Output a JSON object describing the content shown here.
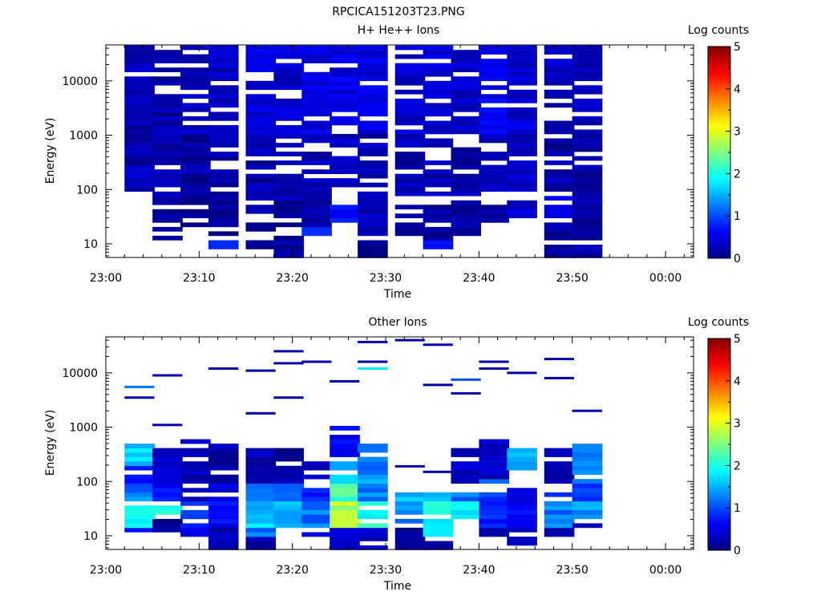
{
  "figure_title": "RPCICA151203T23.PNG",
  "chart_data": [
    {
      "type": "heatmap",
      "title": "H+ He++ Ions",
      "xlabel": "Time",
      "ylabel": "Energy (eV)",
      "xlim": [
        "23:00",
        "00:03"
      ],
      "ylim": [
        5.6,
        46000
      ],
      "yscale": "log",
      "x_tick_labels": [
        "23:00",
        "23:10",
        "23:20",
        "23:30",
        "23:40",
        "23:50",
        "00:00"
      ],
      "y_tick_labels": [
        "10",
        "100",
        "1000",
        "10000"
      ],
      "colorbar": {
        "label": "Log counts",
        "range": [
          0,
          5
        ],
        "tick_labels": [
          "0",
          "1",
          "2",
          "3",
          "4",
          "5"
        ]
      },
      "time_bins_start": [
        "23:02",
        "23:05",
        "23:08",
        "23:11",
        "23:15",
        "23:18",
        "23:21",
        "23:24",
        "23:27",
        "23:31",
        "23:34",
        "23:37",
        "23:40",
        "23:43",
        "23:47",
        "23:50"
      ],
      "bin_minutes": 3.2,
      "columns": [
        {
          "emin": 100,
          "emax": 45000,
          "bands": [
            [
              100,
              300,
              0.3
            ],
            [
              300,
              1500,
              0.2
            ],
            [
              1500,
              45000,
              0.3
            ]
          ]
        },
        {
          "emin": 12,
          "emax": 45000,
          "bands": [
            [
              12,
              60,
              0.1
            ],
            [
              60,
              1000,
              0.2
            ],
            [
              1000,
              45000,
              0.2
            ]
          ]
        },
        {
          "emin": 15,
          "emax": 45000,
          "bands": [
            [
              15,
              60,
              0.1
            ],
            [
              60,
              1000,
              0.15
            ],
            [
              1000,
              45000,
              0.3
            ]
          ]
        },
        {
          "emin": 8,
          "emax": 45000,
          "bands": [
            [
              8,
              12,
              0.7
            ],
            [
              12,
              100,
              0.1
            ],
            [
              100,
              1000,
              0.2
            ],
            [
              1000,
              45000,
              0.35
            ]
          ]
        },
        {
          "emin": 8,
          "emax": 45000,
          "bands": [
            [
              8,
              40,
              0.1
            ],
            [
              40,
              1000,
              0.2
            ],
            [
              1000,
              45000,
              0.45
            ]
          ]
        },
        {
          "emin": 6,
          "emax": 45000,
          "bands": [
            [
              6,
              60,
              0.15
            ],
            [
              60,
              1000,
              0.25
            ],
            [
              1000,
              45000,
              0.4
            ]
          ]
        },
        {
          "emin": 15,
          "emax": 45000,
          "bands": [
            [
              15,
              20,
              0.7
            ],
            [
              20,
              100,
              0.2
            ],
            [
              100,
              1000,
              0.25
            ],
            [
              1000,
              45000,
              0.5
            ]
          ]
        },
        {
          "emin": 20,
          "emax": 45000,
          "bands": [
            [
              20,
              60,
              0.7
            ],
            [
              60,
              1000,
              0.3
            ],
            [
              1000,
              45000,
              0.5
            ]
          ]
        },
        {
          "emin": 6,
          "emax": 45000,
          "bands": [
            [
              6,
              15,
              0.1
            ],
            [
              15,
              100,
              0.3
            ],
            [
              100,
              1000,
              0.25
            ],
            [
              1000,
              45000,
              0.5
            ]
          ]
        },
        {
          "emin": 15,
          "emax": 45000,
          "bands": [
            [
              15,
              60,
              0.1
            ],
            [
              60,
              1000,
              0.25
            ],
            [
              1000,
              45000,
              0.4
            ]
          ]
        },
        {
          "emin": 8,
          "emax": 45000,
          "bands": [
            [
              8,
              12,
              0.8
            ],
            [
              12,
              60,
              0.2
            ],
            [
              60,
              1000,
              0.25
            ],
            [
              1000,
              45000,
              0.4
            ]
          ]
        },
        {
          "emin": 15,
          "emax": 45000,
          "bands": [
            [
              15,
              60,
              0.15
            ],
            [
              60,
              1000,
              0.2
            ],
            [
              1000,
              45000,
              0.35
            ]
          ]
        },
        {
          "emin": 25,
          "emax": 45000,
          "bands": [
            [
              25,
              100,
              0.2
            ],
            [
              100,
              1000,
              0.3
            ],
            [
              1000,
              45000,
              0.55
            ]
          ]
        },
        {
          "emin": 30,
          "emax": 45000,
          "bands": [
            [
              30,
              100,
              0.4
            ],
            [
              100,
              1000,
              0.3
            ],
            [
              1000,
              45000,
              0.4
            ]
          ]
        },
        {
          "emin": 6,
          "emax": 45000,
          "bands": [
            [
              6,
              30,
              0.15
            ],
            [
              30,
              100,
              0.5
            ],
            [
              100,
              1000,
              0.2
            ],
            [
              1000,
              45000,
              0.3
            ]
          ]
        },
        {
          "emin": 6,
          "emax": 45000,
          "bands": [
            [
              6,
              30,
              0.2
            ],
            [
              30,
              100,
              0.3
            ],
            [
              100,
              1000,
              0.2
            ],
            [
              1000,
              45000,
              0.3
            ]
          ]
        }
      ]
    },
    {
      "type": "heatmap",
      "title": "Other Ions",
      "xlabel": "Time",
      "ylabel": "Energy (eV)",
      "xlim": [
        "23:00",
        "00:03"
      ],
      "ylim": [
        5.6,
        46000
      ],
      "yscale": "log",
      "x_tick_labels": [
        "23:00",
        "23:10",
        "23:20",
        "23:30",
        "23:40",
        "23:50",
        "00:00"
      ],
      "y_tick_labels": [
        "10",
        "100",
        "1000",
        "10000"
      ],
      "colorbar": {
        "label": "Log counts",
        "range": [
          0,
          5
        ],
        "tick_labels": [
          "0",
          "1",
          "2",
          "3",
          "4",
          "5"
        ]
      },
      "time_bins_start": [
        "23:02",
        "23:05",
        "23:08",
        "23:11",
        "23:15",
        "23:18",
        "23:21",
        "23:24",
        "23:27",
        "23:31",
        "23:34",
        "23:37",
        "23:40",
        "23:43",
        "23:47",
        "23:50"
      ],
      "bin_minutes": 3.2,
      "columns": [
        {
          "emin": 9,
          "emax": 550,
          "bands": [
            [
              9,
              14,
              0.6
            ],
            [
              14,
              40,
              1.8
            ],
            [
              40,
              100,
              1.2
            ],
            [
              100,
              200,
              0.8
            ],
            [
              200,
              550,
              1.7
            ]
          ],
          "lines": [
            [
              5500,
              1.2
            ],
            [
              3500,
              0.2
            ]
          ]
        },
        {
          "emin": 12,
          "emax": 450,
          "bands": [
            [
              12,
              20,
              0.1
            ],
            [
              20,
              40,
              2.0
            ],
            [
              40,
              100,
              0.7
            ],
            [
              100,
              450,
              0.3
            ]
          ],
          "lines": [
            [
              9000,
              0.2
            ],
            [
              1100,
              0.2
            ]
          ]
        },
        {
          "emin": 9,
          "emax": 650,
          "bands": [
            [
              9,
              14,
              0.6
            ],
            [
              14,
              40,
              0.8
            ],
            [
              40,
              100,
              0.2
            ],
            [
              100,
              650,
              0.25
            ]
          ],
          "lines": []
        },
        {
          "emin": 5.8,
          "emax": 520,
          "bands": [
            [
              5.8,
              14,
              0.2
            ],
            [
              14,
              40,
              0.6
            ],
            [
              40,
              100,
              0.5
            ],
            [
              100,
              520,
              0.2
            ]
          ],
          "lines": [
            [
              12000,
              0.2
            ]
          ]
        },
        {
          "emin": 5.8,
          "emax": 450,
          "bands": [
            [
              5.8,
              9,
              0.2
            ],
            [
              9,
              14,
              1.2
            ],
            [
              14,
              40,
              1.6
            ],
            [
              40,
              100,
              1.2
            ],
            [
              100,
              450,
              0.25
            ]
          ],
          "lines": [
            [
              11000,
              0.2
            ],
            [
              1800,
              0.2
            ]
          ]
        },
        {
          "emin": 14,
          "emax": 450,
          "bands": [
            [
              14,
              40,
              1.6
            ],
            [
              40,
              100,
              1.0
            ],
            [
              100,
              450,
              0.2
            ]
          ],
          "lines": [
            [
              25000,
              0.2
            ],
            [
              15000,
              0.2
            ],
            [
              3500,
              0.2
            ]
          ]
        },
        {
          "emin": 9,
          "emax": 230,
          "bands": [
            [
              9,
              14,
              0.6
            ],
            [
              14,
              40,
              1.2
            ],
            [
              40,
              100,
              0.8
            ],
            [
              100,
              230,
              0.3
            ]
          ],
          "lines": [
            [
              16000,
              0.2
            ]
          ]
        },
        {
          "emin": 5.8,
          "emax": 1000,
          "bands": [
            [
              5.8,
              14,
              0.3
            ],
            [
              14,
              40,
              2.7
            ],
            [
              40,
              100,
              2.2
            ],
            [
              100,
              300,
              1.5
            ],
            [
              300,
              1000,
              0.6
            ]
          ],
          "lines": [
            [
              7000,
              0.2
            ]
          ]
        },
        {
          "emin": 5.8,
          "emax": 500,
          "bands": [
            [
              5.8,
              14,
              0.3
            ],
            [
              14,
              40,
              2.0
            ],
            [
              40,
              100,
              1.2
            ],
            [
              100,
              500,
              1.3
            ]
          ],
          "lines": [
            [
              37000,
              0.3
            ],
            [
              16000,
              0.2
            ],
            [
              12000,
              1.8
            ]
          ]
        },
        {
          "emin": 5.8,
          "emax": 300,
          "bands": [
            [
              5.8,
              14,
              0.1
            ],
            [
              14,
              40,
              1.2
            ],
            [
              40,
              60,
              1.5
            ]
          ],
          "lines": [
            [
              40000,
              0.2
            ],
            [
              190,
              0.2
            ]
          ]
        },
        {
          "emin": 5.8,
          "emax": 380,
          "bands": [
            [
              5.8,
              9,
              0.2
            ],
            [
              9,
              40,
              1.9
            ],
            [
              40,
              60,
              1.4
            ]
          ],
          "lines": [
            [
              33000,
              0.2
            ],
            [
              6000,
              0.2
            ],
            [
              150,
              0.2
            ]
          ]
        },
        {
          "emin": 14,
          "emax": 380,
          "bands": [
            [
              14,
              40,
              1.9
            ],
            [
              40,
              60,
              1.2
            ],
            [
              100,
              380,
              0.3
            ]
          ],
          "lines": [
            [
              7500,
              1.0
            ],
            [
              4200,
              0.2
            ]
          ]
        },
        {
          "emin": 9,
          "emax": 650,
          "bands": [
            [
              9,
              14,
              0.3
            ],
            [
              14,
              40,
              0.8
            ],
            [
              40,
              60,
              0.9
            ],
            [
              90,
              120,
              1.3
            ],
            [
              120,
              650,
              0.3
            ]
          ],
          "lines": [
            [
              16000,
              0.2
            ],
            [
              12000,
              0.2
            ]
          ]
        },
        {
          "emin": 5.8,
          "emax": 400,
          "bands": [
            [
              5.8,
              14,
              0.4
            ],
            [
              14,
              40,
              0.6
            ],
            [
              40,
              80,
              0.4
            ],
            [
              160,
              400,
              1.4
            ]
          ],
          "lines": [
            [
              10000,
              0.2
            ]
          ]
        },
        {
          "emin": 9,
          "emax": 400,
          "bands": [
            [
              9,
              14,
              0.2
            ],
            [
              14,
              40,
              1.2
            ],
            [
              40,
              60,
              0.8
            ],
            [
              100,
              400,
              0.3
            ]
          ],
          "lines": [
            [
              18000,
              0.2
            ],
            [
              8000,
              0.2
            ]
          ]
        },
        {
          "emin": 14,
          "emax": 500,
          "bands": [
            [
              14,
              20,
              0.2
            ],
            [
              20,
              40,
              1.3
            ],
            [
              40,
              100,
              0.9
            ],
            [
              100,
              500,
              1.3
            ]
          ],
          "lines": [
            [
              2000,
              0.2
            ]
          ]
        }
      ]
    }
  ]
}
